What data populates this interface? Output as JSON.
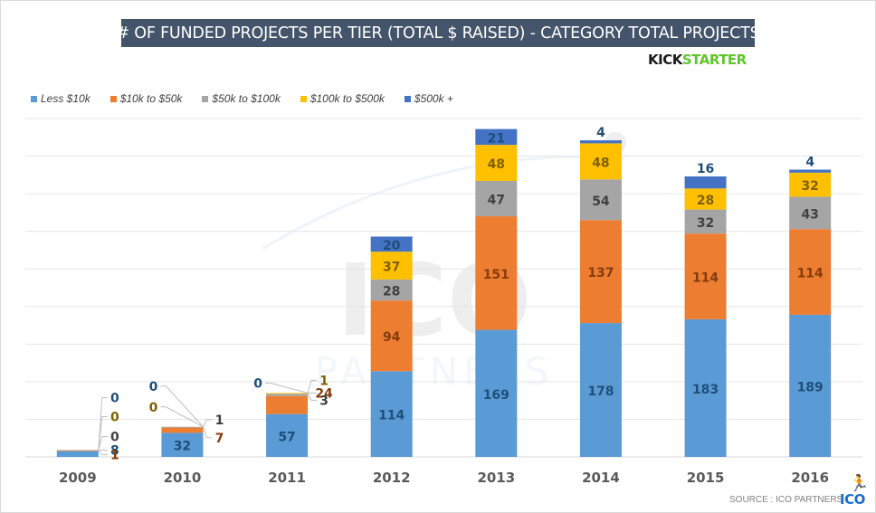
{
  "header": {
    "title": "# OF FUNDED PROJECTS PER TIER (TOTAL $ RAISED) - CATEGORY TOTAL PROJECTS",
    "brand_part1": "KICK",
    "brand_part2": "STARTER"
  },
  "footer": {
    "source": "SOURCE : ICO PARTNERS",
    "logo": "ICO",
    "logo_icon": "runner-icon"
  },
  "watermark": {
    "line1": "ICO",
    "line2": "PARTNERS"
  },
  "chart_data": {
    "type": "bar",
    "stacked": true,
    "title": "# OF FUNDED PROJECTS PER TIER (TOTAL $ RAISED) - CATEGORY TOTAL PROJECTS",
    "xlabel": "",
    "ylabel": "",
    "ylim": [
      0,
      450
    ],
    "y_gridline_step": 50,
    "grid": true,
    "legend_position": "top-left",
    "categories": [
      "2009",
      "2010",
      "2011",
      "2012",
      "2013",
      "2014",
      "2015",
      "2016"
    ],
    "series": [
      {
        "name": "Less $10k",
        "color": "#5b9bd5",
        "label_color": "#1f4e79",
        "values": [
          8,
          32,
          57,
          114,
          169,
          178,
          183,
          189
        ]
      },
      {
        "name": "$10k to $50k",
        "color": "#ed7d31",
        "label_color": "#843c0c",
        "values": [
          1,
          7,
          24,
          94,
          151,
          137,
          114,
          114
        ]
      },
      {
        "name": "$50k to $100k",
        "color": "#a5a5a5",
        "label_color": "#404040",
        "values": [
          0,
          1,
          3,
          28,
          47,
          54,
          32,
          43
        ]
      },
      {
        "name": "$100k to $500k",
        "color": "#ffc000",
        "label_color": "#7f6000",
        "values": [
          0,
          0,
          1,
          37,
          48,
          48,
          28,
          32
        ]
      },
      {
        "name": "$500k +",
        "color": "#4472c4",
        "label_color": "#1f4e79",
        "values": [
          0,
          0,
          0,
          20,
          21,
          4,
          16,
          4
        ]
      }
    ]
  }
}
